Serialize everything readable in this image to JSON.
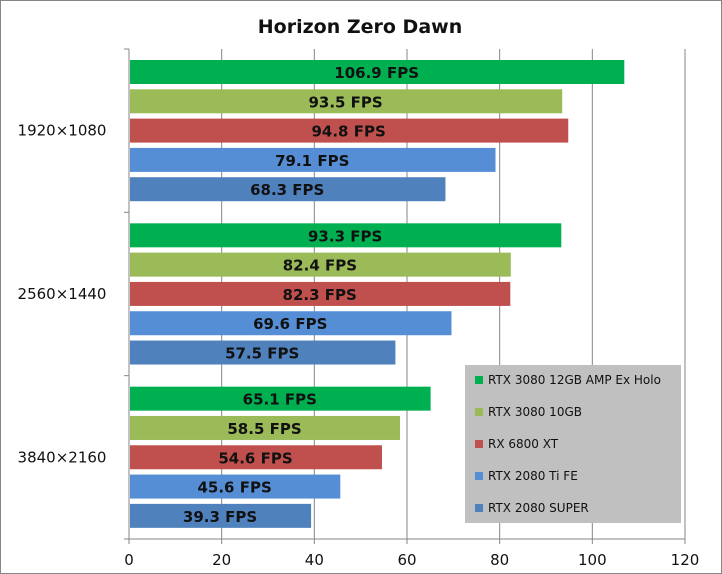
{
  "chart_data": {
    "type": "bar",
    "orientation": "horizontal",
    "title": "Horizon Zero Dawn",
    "categories": [
      "1920×1080",
      "2560×1440",
      "3840×2160"
    ],
    "xlim": [
      0,
      120
    ],
    "xticks": [
      0,
      20,
      40,
      60,
      80,
      100,
      120
    ],
    "grid": true,
    "legend_position": "bottom-right",
    "series": [
      {
        "name": "RTX 3080 12GB AMP Ex Holo",
        "color": "#00b050",
        "values": [
          106.9,
          93.3,
          65.1
        ],
        "labels": [
          "106.9 FPS",
          "93.3 FPS",
          "65.1 FPS"
        ]
      },
      {
        "name": "RTX 3080 10GB",
        "color": "#9bbb59",
        "values": [
          93.5,
          82.4,
          58.5
        ],
        "labels": [
          "93.5 FPS",
          "82.4 FPS",
          "58.5 FPS"
        ]
      },
      {
        "name": "RX 6800 XT",
        "color": "#c0504d",
        "values": [
          94.8,
          82.3,
          54.6
        ],
        "labels": [
          "94.8 FPS",
          "82.3 FPS",
          "54.6 FPS"
        ]
      },
      {
        "name": "RTX 2080 Ti FE",
        "color": "#558ed5",
        "values": [
          79.1,
          69.6,
          45.6
        ],
        "labels": [
          "79.1 FPS",
          "69.6 FPS",
          "45.6 FPS"
        ]
      },
      {
        "name": "RTX 2080 SUPER",
        "color": "#4f81bd",
        "values": [
          68.3,
          57.5,
          39.3
        ],
        "labels": [
          "68.3 FPS",
          "57.5 FPS",
          "39.3 FPS"
        ]
      }
    ],
    "legend_background": "#c0c0c0",
    "gridline_color": "#868686"
  }
}
